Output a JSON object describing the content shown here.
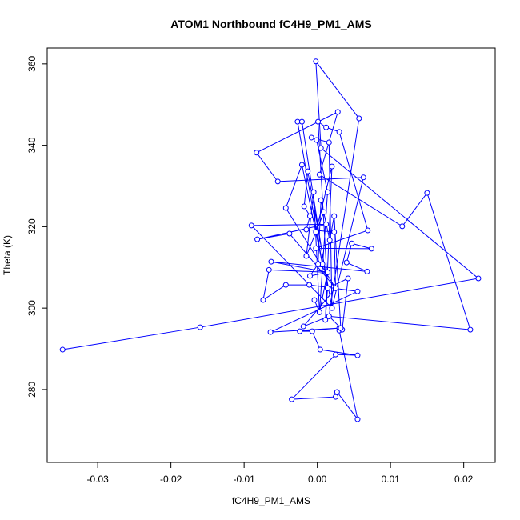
{
  "chart_data": {
    "type": "line",
    "markers": "open-circle",
    "color": "#0000ff",
    "title": "ATOM1 Northbound fC4H9_PM1_AMS",
    "xlabel": "fC4H9_PM1_AMS",
    "ylabel": "Theta (K)",
    "xlim": [
      -0.0369,
      0.0243
    ],
    "ylim": [
      262.1,
      363.9
    ],
    "xticks": [
      -0.03,
      -0.02,
      -0.01,
      {
        "value": 0,
        "label": "0.00"
      },
      0.01,
      0.02
    ],
    "yticks": [
      280,
      300,
      320,
      340,
      360
    ],
    "x": [
      -0.0348,
      -0.016,
      0.022,
      0.0005,
      -0.0002,
      0.0057,
      0.0016,
      0.0209,
      0.015,
      0.0116,
      0.0003,
      0.0028,
      -0.0083,
      -0.0054,
      0.0063,
      0.002,
      -0.009,
      0.0012,
      -0.0082,
      -0.0038,
      0.0025,
      -0.0043,
      -0.0021,
      0.0007,
      -0.0027,
      -0.0021,
      0.0014,
      0.0001,
      0.0012,
      0.003,
      0.0069,
      -0.0002,
      0.0074,
      0.0047,
      0.004,
      0.0068,
      -0.0063,
      0.0014,
      -0.0066,
      -0.0074,
      -0.0043,
      -0.0011,
      0.0055,
      -0.0064,
      0.003,
      -0.0024,
      -0.0007,
      0.0004,
      0.0055,
      0.0025,
      -0.0035,
      0.0025,
      0.0027,
      0.0055,
      0.003,
      0.0034,
      0.0042,
      0.0014,
      0.0011,
      0.002,
      -0.0002,
      0.0009,
      -0.0015,
      -0.0005,
      0.0003,
      0.0014,
      -0.0001,
      -0.0008,
      0.0016,
      0.002,
      -0.0013,
      -0.0018,
      -0.001,
      -0.0015,
      0.0023,
      0.0025,
      -0.0019,
      0.0016,
      0.0032,
      0.0023,
      0.0017,
      0.0005,
      0.0001,
      -0.001,
      0.0014,
      0.0003,
      -0.0004
    ],
    "y": [
      289.8,
      295.3,
      307.3,
      339.3,
      360.6,
      346.6,
      298.0,
      294.7,
      328.3,
      320.1,
      332.8,
      348.2,
      338.2,
      331.1,
      332.1,
      300.0,
      320.3,
      320.6,
      316.9,
      318.3,
      304.9,
      324.6,
      335.2,
      310.8,
      345.8,
      345.8,
      304.9,
      345.8,
      344.4,
      343.3,
      319.1,
      314.7,
      314.6,
      315.9,
      311.2,
      309.0,
      311.4,
      308.8,
      309.4,
      302.0,
      305.7,
      305.7,
      304.1,
      294.1,
      295.1,
      294.3,
      294.3,
      289.8,
      288.4,
      288.6,
      277.6,
      278.2,
      279.4,
      272.7,
      294.5,
      294.7,
      307.3,
      304.9,
      297.1,
      334.8,
      318.7,
      323.6,
      312.8,
      328.5,
      299.0,
      328.5,
      341.3,
      341.9,
      340.7,
      300.0,
      333.6,
      325.0,
      322.6,
      319.3,
      318.7,
      304.9,
      295.5,
      298.0,
      295.1,
      322.6,
      316.7,
      326.5,
      310.8,
      307.9,
      308.8,
      299.0,
      302.0
    ]
  }
}
